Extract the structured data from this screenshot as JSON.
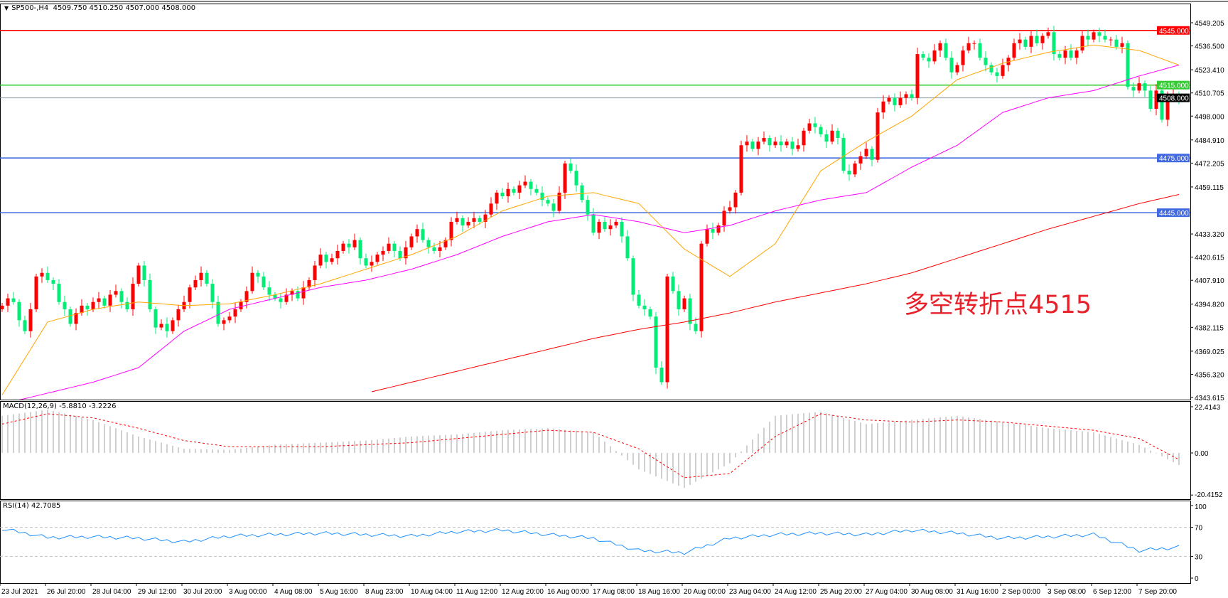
{
  "header": {
    "symbol_timeframe": "SP500-,H4",
    "ohlc": "4509.750 4510.250 4507.000 4508.000",
    "menu_icon": "triangle-down-icon"
  },
  "annotation": "多空转折点4515",
  "macd_label": "MACD(12,26,9) -5.8810 -3.2226",
  "rsi_label": "RSI(14) 42.7085",
  "colors": {
    "bull": "#ff0000",
    "bear": "#00ee77",
    "ma_fast": "#ffa500",
    "ma_mid": "#ff00ff",
    "ma_slow": "#ff0000",
    "macd_hist": "#c0c0c0",
    "macd_signal": "#ff0000",
    "rsi": "#1e90ff"
  },
  "chart_data": [
    {
      "type": "candlestick",
      "symbol": "SP500-",
      "timeframe": "H4",
      "ylim": [
        4343.615,
        4549.205
      ],
      "y_ticks": [
        "4549.205",
        "4536.500",
        "4523.410",
        "4510.705",
        "4498.000",
        "4484.910",
        "4472.205",
        "4459.115",
        "4433.320",
        "4420.615",
        "4407.910",
        "4394.820",
        "4382.115",
        "4369.025",
        "4356.320",
        "4343.615"
      ],
      "x_ticks": [
        "23 Jul 2021",
        "26 Jul 20:00",
        "28 Jul 04:00",
        "29 Jul 12:00",
        "30 Jul 20:00",
        "3 Aug 00:00",
        "4 Aug 08:00",
        "5 Aug 16:00",
        "8 Aug 23:00",
        "10 Aug 04:00",
        "11 Aug 12:00",
        "12 Aug 20:00",
        "16 Aug 00:00",
        "17 Aug 08:00",
        "18 Aug 16:00",
        "20 Aug 00:00",
        "23 Aug 04:00",
        "24 Aug 12:00",
        "25 Aug 20:00",
        "27 Aug 04:00",
        "30 Aug 08:00",
        "31 Aug 16:00",
        "2 Sep 00:00",
        "3 Sep 08:00",
        "6 Sep 12:00",
        "7 Sep 20:00"
      ],
      "bars_per_tick": 8,
      "first_open": 4392,
      "close": [
        4394,
        4398,
        4396,
        4386,
        4380,
        4392,
        4410,
        4412,
        4408,
        4406,
        4396,
        4392,
        4384,
        4390,
        4394,
        4392,
        4396,
        4398,
        4394,
        4400,
        4402,
        4396,
        4392,
        4406,
        4416,
        4408,
        4392,
        4382,
        4384,
        4380,
        4386,
        4392,
        4396,
        4404,
        4408,
        4412,
        4406,
        4396,
        4384,
        4386,
        4388,
        4392,
        4396,
        4402,
        4412,
        4410,
        4404,
        4400,
        4398,
        4396,
        4400,
        4402,
        4398,
        4404,
        4408,
        4416,
        4422,
        4418,
        4420,
        4424,
        4428,
        4426,
        4430,
        4420,
        4416,
        4418,
        4422,
        4424,
        4428,
        4424,
        4420,
        4426,
        4432,
        4436,
        4430,
        4426,
        4424,
        4426,
        4430,
        4440,
        4442,
        4438,
        4440,
        4442,
        4440,
        4444,
        4450,
        4456,
        4454,
        4458,
        4456,
        4460,
        4462,
        4458,
        4456,
        4452,
        4450,
        4446,
        4456,
        4472,
        4468,
        4460,
        4452,
        4444,
        4434,
        4440,
        4436,
        4438,
        4440,
        4432,
        4420,
        4400,
        4394,
        4392,
        4388,
        4360,
        4352,
        4410,
        4402,
        4392,
        4398,
        4384,
        4380,
        4428,
        4436,
        4434,
        4438,
        4446,
        4448,
        4456,
        4482,
        4484,
        4480,
        4484,
        4486,
        4482,
        4484,
        4482,
        4484,
        4480,
        4482,
        4490,
        4494,
        4492,
        4488,
        4484,
        4490,
        4486,
        4468,
        4466,
        4472,
        4476,
        4480,
        4474,
        4500,
        4506,
        4508,
        4504,
        4508,
        4510,
        4508,
        4532,
        4530,
        4528,
        4534,
        4538,
        4530,
        4522,
        4526,
        4534,
        4538,
        4538,
        4530,
        4526,
        4522,
        4520,
        4526,
        4530,
        4538,
        4540,
        4536,
        4542,
        4538,
        4542,
        4544,
        4532,
        4530,
        4534,
        4530,
        4534,
        4542,
        4540,
        4544,
        4542,
        4540,
        4540,
        4536,
        4538,
        4514,
        4512,
        4516,
        4512,
        4502,
        4512,
        4496,
        4509,
        4510,
        4508
      ],
      "ma_sample_bars": [
        0,
        8,
        16,
        24,
        32,
        40,
        48,
        56,
        64,
        72,
        80,
        88,
        96,
        104,
        112,
        120,
        128,
        136,
        144,
        152,
        160,
        168,
        176,
        184,
        192,
        200,
        207
      ],
      "ma_fast": [
        4345,
        4385,
        4392,
        4396,
        4394,
        4395,
        4400,
        4406,
        4414,
        4422,
        4432,
        4446,
        4454,
        4456,
        4450,
        4425,
        4410,
        4428,
        4468,
        4484,
        4498,
        4518,
        4527,
        4533,
        4537,
        4534,
        4526
      ],
      "ma_mid": [
        4340,
        4346,
        4352,
        4360,
        4380,
        4392,
        4398,
        4404,
        4408,
        4414,
        4422,
        4432,
        4440,
        4444,
        4440,
        4434,
        4438,
        4446,
        4452,
        4456,
        4470,
        4482,
        4500,
        4508,
        4512,
        4520,
        4526
      ],
      "ma_slow": [
        null,
        null,
        null,
        null,
        null,
        null,
        null,
        null,
        4346,
        4352,
        4358,
        4364,
        4370,
        4376,
        4381,
        4385,
        4390,
        4396,
        4401,
        4406,
        4412,
        4420,
        4428,
        4436,
        4443,
        4450,
        4455
      ],
      "levels": [
        {
          "price": 4545.0,
          "label": "4545.000",
          "color": "#ff0000"
        },
        {
          "price": 4515.0,
          "label": "4515.000",
          "color": "#33cc33"
        },
        {
          "price": 4508.0,
          "label": "4508.000",
          "color": "#8a9aa8",
          "tag_color": "#000000"
        },
        {
          "price": 4475.0,
          "label": "4475.000",
          "color": "#4169e1"
        },
        {
          "price": 4445.0,
          "label": "4445.000",
          "color": "#4169e1"
        }
      ]
    },
    {
      "type": "bar",
      "name": "MACD(12,26,9)",
      "ylim": [
        -20.4152,
        22.4143
      ],
      "y_ticks": [
        "22.4143",
        "0.00",
        "-20.4152"
      ],
      "sample_bars": [
        0,
        8,
        16,
        24,
        32,
        40,
        48,
        56,
        64,
        72,
        80,
        88,
        96,
        104,
        112,
        120,
        128,
        136,
        144,
        152,
        160,
        168,
        176,
        184,
        192,
        200,
        207
      ],
      "main": [
        18,
        21,
        16,
        8,
        2,
        1.5,
        4,
        5,
        6,
        8,
        9,
        11,
        12,
        10,
        -8,
        -17,
        -5,
        18,
        20,
        14,
        16,
        18,
        15,
        12,
        10,
        4,
        -5.881
      ],
      "signal": [
        14,
        19,
        17,
        12,
        6,
        3,
        3,
        3,
        4,
        5,
        7,
        9,
        11,
        10,
        2,
        -12,
        -10,
        8,
        19,
        16,
        15,
        16,
        15,
        13,
        11,
        7,
        -3.2226
      ]
    },
    {
      "type": "line",
      "name": "RSI(14)",
      "ylim": [
        0,
        100
      ],
      "y_ticks": [
        "100",
        "70",
        "30",
        "0"
      ],
      "levels": [
        70,
        30
      ],
      "sample_bars": [
        0,
        8,
        16,
        24,
        32,
        40,
        48,
        56,
        64,
        72,
        80,
        88,
        96,
        104,
        112,
        120,
        128,
        136,
        144,
        152,
        160,
        168,
        176,
        184,
        192,
        200,
        207
      ],
      "values": [
        68,
        56,
        57,
        55,
        50,
        58,
        60,
        62,
        60,
        58,
        64,
        66,
        60,
        55,
        38,
        35,
        55,
        60,
        62,
        60,
        66,
        62,
        55,
        57,
        60,
        38,
        42.7085
      ]
    }
  ]
}
